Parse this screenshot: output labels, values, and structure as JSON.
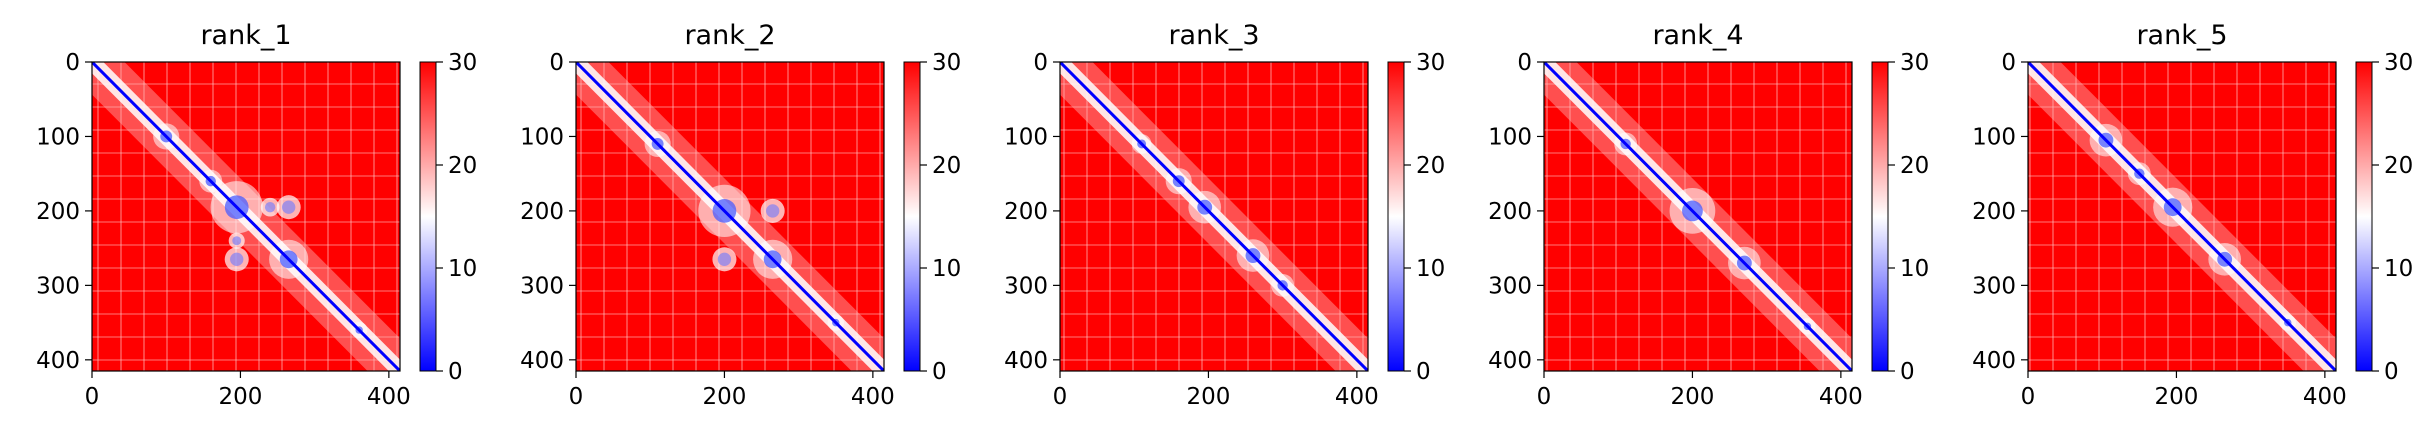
{
  "chart_data": {
    "type": "heatmap",
    "matrix_size": 415,
    "xlim": [
      0,
      415
    ],
    "ylim": [
      415,
      0
    ],
    "x_ticks": [
      0,
      200,
      400
    ],
    "y_ticks": [
      0,
      100,
      200,
      300,
      400
    ],
    "colorbar": {
      "colormap": "bwr",
      "colors": {
        "low": "#0000ff",
        "mid": "#ffffff",
        "high": "#ff0000"
      },
      "range": [
        0,
        30
      ],
      "ticks": [
        0,
        10,
        20,
        30
      ]
    },
    "panels": [
      {
        "title": "rank_1",
        "features": [
          {
            "center": 100,
            "radius": 8
          },
          {
            "center": 160,
            "radius": 7
          },
          {
            "center": 195,
            "radius": 16
          },
          {
            "center": 265,
            "radius": 12
          },
          {
            "center": 360,
            "radius": 5
          }
        ],
        "offdiag": [
          {
            "x": 265,
            "y": 195,
            "r": 9
          },
          {
            "x": 195,
            "y": 265,
            "r": 9
          },
          {
            "x": 240,
            "y": 195,
            "r": 7
          },
          {
            "x": 195,
            "y": 240,
            "r": 6
          }
        ]
      },
      {
        "title": "rank_2",
        "features": [
          {
            "center": 110,
            "radius": 8
          },
          {
            "center": 200,
            "radius": 16
          },
          {
            "center": 265,
            "radius": 12
          },
          {
            "center": 350,
            "radius": 5
          }
        ],
        "offdiag": [
          {
            "x": 265,
            "y": 200,
            "r": 9
          },
          {
            "x": 200,
            "y": 265,
            "r": 9
          }
        ]
      },
      {
        "title": "rank_3",
        "features": [
          {
            "center": 110,
            "radius": 6
          },
          {
            "center": 160,
            "radius": 8
          },
          {
            "center": 195,
            "radius": 10
          },
          {
            "center": 260,
            "radius": 10
          },
          {
            "center": 300,
            "radius": 7
          }
        ],
        "offdiag": []
      },
      {
        "title": "rank_4",
        "features": [
          {
            "center": 110,
            "radius": 7
          },
          {
            "center": 200,
            "radius": 14
          },
          {
            "center": 270,
            "radius": 10
          },
          {
            "center": 355,
            "radius": 5
          }
        ],
        "offdiag": []
      },
      {
        "title": "rank_5",
        "features": [
          {
            "center": 105,
            "radius": 10
          },
          {
            "center": 150,
            "radius": 7
          },
          {
            "center": 195,
            "radius": 12
          },
          {
            "center": 265,
            "radius": 10
          },
          {
            "center": 350,
            "radius": 5
          }
        ],
        "offdiag": []
      }
    ]
  }
}
